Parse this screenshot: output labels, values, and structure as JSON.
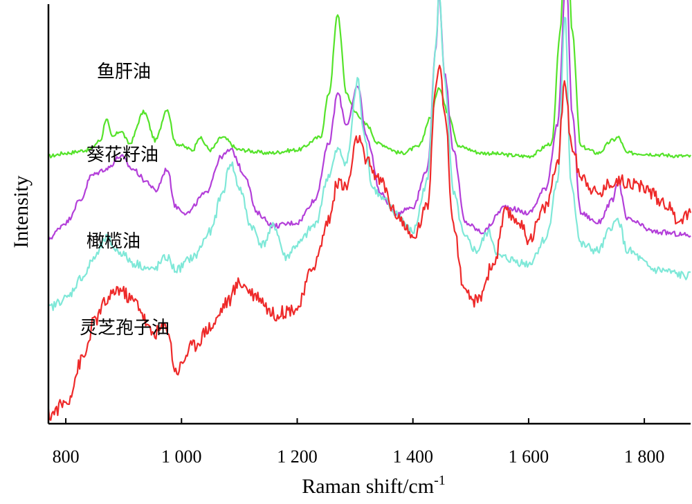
{
  "chart_data": {
    "type": "line",
    "xlabel": "Raman shift/cm",
    "xlabel_superscript": "-1",
    "ylabel": "Intensity",
    "xlim": [
      770,
      1880
    ],
    "x_ticks": [
      800,
      1000,
      1200,
      1400,
      1600,
      1800
    ],
    "x_tick_labels": [
      "800",
      "1 000",
      "1 200",
      "1 400",
      "1 600",
      "1 800"
    ],
    "y_ticks_shown": false,
    "grid": false,
    "legend": "inline labels beside curves",
    "series": [
      {
        "name": "鱼肝油",
        "color": "#55e32a",
        "baseline": 0.82,
        "points": [
          [
            770,
            0.0
          ],
          [
            800,
            0.01
          ],
          [
            840,
            0.02
          ],
          [
            860,
            0.05
          ],
          [
            870,
            0.12
          ],
          [
            880,
            0.06
          ],
          [
            895,
            0.08
          ],
          [
            910,
            0.04
          ],
          [
            935,
            0.14
          ],
          [
            955,
            0.05
          ],
          [
            975,
            0.15
          ],
          [
            990,
            0.04
          ],
          [
            1020,
            0.02
          ],
          [
            1030,
            0.06
          ],
          [
            1050,
            0.02
          ],
          [
            1070,
            0.06
          ],
          [
            1100,
            0.02
          ],
          [
            1150,
            0.01
          ],
          [
            1200,
            0.02
          ],
          [
            1240,
            0.06
          ],
          [
            1255,
            0.2
          ],
          [
            1270,
            0.45
          ],
          [
            1285,
            0.2
          ],
          [
            1300,
            0.14
          ],
          [
            1320,
            0.1
          ],
          [
            1340,
            0.04
          ],
          [
            1380,
            0.01
          ],
          [
            1410,
            0.03
          ],
          [
            1430,
            0.12
          ],
          [
            1445,
            0.22
          ],
          [
            1460,
            0.14
          ],
          [
            1480,
            0.03
          ],
          [
            1520,
            0.01
          ],
          [
            1600,
            0.0
          ],
          [
            1640,
            0.04
          ],
          [
            1655,
            0.4
          ],
          [
            1665,
            0.85
          ],
          [
            1675,
            0.4
          ],
          [
            1690,
            0.03
          ],
          [
            1720,
            0.01
          ],
          [
            1745,
            0.05
          ],
          [
            1755,
            0.06
          ],
          [
            1770,
            0.01
          ],
          [
            1880,
            0.0
          ]
        ]
      },
      {
        "name": "葵花籽油",
        "color": "#b33fd9",
        "baseline": 0.56,
        "points": [
          [
            770,
            0.0
          ],
          [
            800,
            0.05
          ],
          [
            825,
            0.12
          ],
          [
            845,
            0.2
          ],
          [
            870,
            0.22
          ],
          [
            895,
            0.26
          ],
          [
            915,
            0.22
          ],
          [
            940,
            0.18
          ],
          [
            955,
            0.15
          ],
          [
            975,
            0.22
          ],
          [
            990,
            0.1
          ],
          [
            1010,
            0.08
          ],
          [
            1040,
            0.14
          ],
          [
            1070,
            0.26
          ],
          [
            1085,
            0.28
          ],
          [
            1110,
            0.2
          ],
          [
            1130,
            0.08
          ],
          [
            1160,
            0.04
          ],
          [
            1200,
            0.05
          ],
          [
            1230,
            0.12
          ],
          [
            1255,
            0.3
          ],
          [
            1270,
            0.46
          ],
          [
            1285,
            0.36
          ],
          [
            1305,
            0.48
          ],
          [
            1320,
            0.32
          ],
          [
            1345,
            0.14
          ],
          [
            1370,
            0.08
          ],
          [
            1400,
            0.1
          ],
          [
            1425,
            0.22
          ],
          [
            1440,
            0.6
          ],
          [
            1445,
            0.78
          ],
          [
            1455,
            0.52
          ],
          [
            1470,
            0.28
          ],
          [
            1490,
            0.05
          ],
          [
            1520,
            0.02
          ],
          [
            1560,
            0.1
          ],
          [
            1600,
            0.08
          ],
          [
            1630,
            0.16
          ],
          [
            1650,
            0.36
          ],
          [
            1665,
            0.83
          ],
          [
            1675,
            0.4
          ],
          [
            1690,
            0.08
          ],
          [
            1720,
            0.05
          ],
          [
            1745,
            0.12
          ],
          [
            1755,
            0.18
          ],
          [
            1770,
            0.06
          ],
          [
            1820,
            0.02
          ],
          [
            1880,
            0.01
          ]
        ]
      },
      {
        "name": "橄榄油",
        "color": "#7fe8d8",
        "baseline": 0.34,
        "points": [
          [
            770,
            0.0
          ],
          [
            800,
            0.03
          ],
          [
            830,
            0.1
          ],
          [
            850,
            0.16
          ],
          [
            870,
            0.22
          ],
          [
            890,
            0.18
          ],
          [
            920,
            0.14
          ],
          [
            950,
            0.12
          ],
          [
            975,
            0.16
          ],
          [
            990,
            0.12
          ],
          [
            1020,
            0.16
          ],
          [
            1050,
            0.24
          ],
          [
            1070,
            0.36
          ],
          [
            1085,
            0.46
          ],
          [
            1100,
            0.38
          ],
          [
            1120,
            0.26
          ],
          [
            1140,
            0.2
          ],
          [
            1160,
            0.26
          ],
          [
            1180,
            0.16
          ],
          [
            1200,
            0.2
          ],
          [
            1230,
            0.26
          ],
          [
            1255,
            0.42
          ],
          [
            1270,
            0.5
          ],
          [
            1285,
            0.46
          ],
          [
            1305,
            0.72
          ],
          [
            1315,
            0.56
          ],
          [
            1330,
            0.38
          ],
          [
            1350,
            0.34
          ],
          [
            1370,
            0.3
          ],
          [
            1400,
            0.24
          ],
          [
            1425,
            0.4
          ],
          [
            1440,
            0.84
          ],
          [
            1445,
            1.0
          ],
          [
            1455,
            0.72
          ],
          [
            1470,
            0.36
          ],
          [
            1490,
            0.22
          ],
          [
            1510,
            0.18
          ],
          [
            1530,
            0.24
          ],
          [
            1550,
            0.16
          ],
          [
            1600,
            0.14
          ],
          [
            1630,
            0.22
          ],
          [
            1650,
            0.4
          ],
          [
            1663,
            0.92
          ],
          [
            1673,
            0.4
          ],
          [
            1690,
            0.2
          ],
          [
            1720,
            0.18
          ],
          [
            1745,
            0.26
          ],
          [
            1755,
            0.28
          ],
          [
            1770,
            0.18
          ],
          [
            1820,
            0.12
          ],
          [
            1880,
            0.1
          ]
        ]
      },
      {
        "name": "灵芝孢子油",
        "color": "#ee2a2a",
        "baseline": 0.0,
        "points": [
          [
            770,
            0.0
          ],
          [
            800,
            0.04
          ],
          [
            830,
            0.18
          ],
          [
            850,
            0.3
          ],
          [
            870,
            0.36
          ],
          [
            890,
            0.4
          ],
          [
            920,
            0.36
          ],
          [
            950,
            0.26
          ],
          [
            975,
            0.28
          ],
          [
            990,
            0.14
          ],
          [
            1020,
            0.22
          ],
          [
            1050,
            0.28
          ],
          [
            1080,
            0.36
          ],
          [
            1100,
            0.42
          ],
          [
            1130,
            0.38
          ],
          [
            1160,
            0.32
          ],
          [
            1200,
            0.34
          ],
          [
            1230,
            0.48
          ],
          [
            1255,
            0.62
          ],
          [
            1270,
            0.74
          ],
          [
            1285,
            0.72
          ],
          [
            1305,
            0.88
          ],
          [
            1320,
            0.8
          ],
          [
            1345,
            0.74
          ],
          [
            1370,
            0.64
          ],
          [
            1400,
            0.56
          ],
          [
            1425,
            0.66
          ],
          [
            1440,
            1.06
          ],
          [
            1445,
            1.12
          ],
          [
            1455,
            0.96
          ],
          [
            1470,
            0.6
          ],
          [
            1490,
            0.38
          ],
          [
            1510,
            0.36
          ],
          [
            1540,
            0.48
          ],
          [
            1560,
            0.64
          ],
          [
            1580,
            0.62
          ],
          [
            1600,
            0.56
          ],
          [
            1630,
            0.66
          ],
          [
            1650,
            0.8
          ],
          [
            1663,
            1.06
          ],
          [
            1673,
            0.86
          ],
          [
            1690,
            0.76
          ],
          [
            1720,
            0.7
          ],
          [
            1745,
            0.74
          ],
          [
            1770,
            0.74
          ],
          [
            1800,
            0.72
          ],
          [
            1830,
            0.68
          ],
          [
            1860,
            0.62
          ],
          [
            1880,
            0.64
          ]
        ]
      }
    ]
  }
}
